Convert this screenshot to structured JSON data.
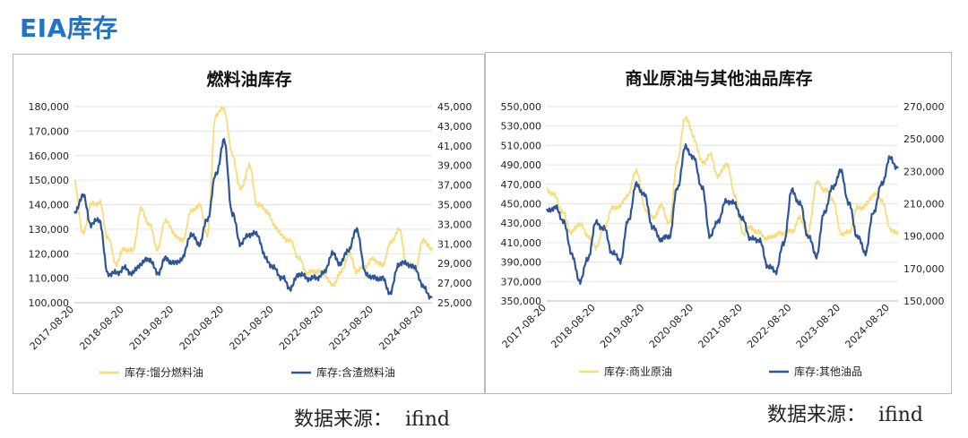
{
  "page": {
    "title": "EIA库存"
  },
  "sources": [
    {
      "label": "数据来源：",
      "value": "ifind"
    },
    {
      "label": "数据来源：",
      "value": "ifind"
    }
  ],
  "colors": {
    "yellow": "#f7dc7b",
    "blue": "#2e5597"
  },
  "chart_data": [
    {
      "type": "line",
      "title": "燃料油库存",
      "x_ticks": [
        "2017-08-20",
        "2018-08-20",
        "2019-08-20",
        "2020-08-20",
        "2021-08-20",
        "2022-08-20",
        "2023-08-20",
        "2024-08-20"
      ],
      "x_range": [
        "2017-08-20",
        "2024-10-20"
      ],
      "y_left": {
        "range": [
          100000,
          180000
        ],
        "ticks": [
          "100,000",
          "110,000",
          "120,000",
          "130,000",
          "140,000",
          "150,000",
          "160,000",
          "170,000",
          "180,000"
        ]
      },
      "y_right": {
        "range": [
          25000,
          45000
        ],
        "ticks": [
          "25,000",
          "27,000",
          "29,000",
          "31,000",
          "33,000",
          "35,000",
          "37,000",
          "39,000",
          "41,000",
          "43,000",
          "45,000"
        ]
      },
      "legend_position": "bottom",
      "series": [
        {
          "name": "库存:馏分燃料油",
          "axis": "left",
          "color": "#f7dc7b",
          "points": [
            [
              "2017-08-20",
              150000
            ],
            [
              "2017-10-20",
              128000
            ],
            [
              "2017-12-20",
              140000
            ],
            [
              "2018-02-20",
              141000
            ],
            [
              "2018-04-20",
              127000
            ],
            [
              "2018-06-20",
              116000
            ],
            [
              "2018-08-20",
              122000
            ],
            [
              "2018-10-20",
              121000
            ],
            [
              "2018-12-20",
              138000
            ],
            [
              "2019-02-20",
              132000
            ],
            [
              "2019-04-20",
              122000
            ],
            [
              "2019-06-20",
              134000
            ],
            [
              "2019-08-20",
              128000
            ],
            [
              "2019-10-20",
              125000
            ],
            [
              "2019-12-20",
              137000
            ],
            [
              "2020-02-20",
              140000
            ],
            [
              "2020-04-20",
              128000
            ],
            [
              "2020-06-20",
              177000
            ],
            [
              "2020-08-20",
              179000
            ],
            [
              "2020-10-20",
              160000
            ],
            [
              "2020-12-20",
              146000
            ],
            [
              "2021-02-20",
              156000
            ],
            [
              "2021-04-20",
              140000
            ],
            [
              "2021-06-20",
              138000
            ],
            [
              "2021-08-20",
              132000
            ],
            [
              "2021-10-20",
              127000
            ],
            [
              "2021-12-20",
              125000
            ],
            [
              "2022-02-20",
              118000
            ],
            [
              "2022-04-20",
              112000
            ],
            [
              "2022-06-20",
              113000
            ],
            [
              "2022-08-20",
              112000
            ],
            [
              "2022-10-20",
              107000
            ],
            [
              "2022-12-20",
              112000
            ],
            [
              "2023-02-20",
              120000
            ],
            [
              "2023-04-20",
              113000
            ],
            [
              "2023-06-20",
              115000
            ],
            [
              "2023-08-20",
              118000
            ],
            [
              "2023-10-20",
              115000
            ],
            [
              "2023-12-20",
              124000
            ],
            [
              "2024-02-20",
              130000
            ],
            [
              "2024-04-20",
              116000
            ],
            [
              "2024-06-20",
              114000
            ],
            [
              "2024-08-20",
              126000
            ],
            [
              "2024-10-20",
              121000
            ]
          ]
        },
        {
          "name": "库存:含渣燃料油",
          "axis": "right",
          "color": "#2e5597",
          "points": [
            [
              "2017-08-20",
              34000
            ],
            [
              "2017-10-20",
              36000
            ],
            [
              "2017-12-20",
              33000
            ],
            [
              "2018-02-20",
              33500
            ],
            [
              "2018-04-20",
              28000
            ],
            [
              "2018-06-20",
              28000
            ],
            [
              "2018-08-20",
              28500
            ],
            [
              "2018-10-20",
              28000
            ],
            [
              "2018-12-20",
              29000
            ],
            [
              "2019-02-20",
              29500
            ],
            [
              "2019-04-20",
              28000
            ],
            [
              "2019-06-20",
              29500
            ],
            [
              "2019-08-20",
              29000
            ],
            [
              "2019-10-20",
              29500
            ],
            [
              "2019-12-20",
              32000
            ],
            [
              "2020-02-20",
              31000
            ],
            [
              "2020-04-20",
              33500
            ],
            [
              "2020-06-20",
              38000
            ],
            [
              "2020-08-20",
              41500
            ],
            [
              "2020-10-20",
              34000
            ],
            [
              "2020-12-20",
              31000
            ],
            [
              "2021-02-20",
              32000
            ],
            [
              "2021-04-20",
              32000
            ],
            [
              "2021-06-20",
              29500
            ],
            [
              "2021-08-20",
              28500
            ],
            [
              "2021-10-20",
              27500
            ],
            [
              "2021-12-20",
              26500
            ],
            [
              "2022-02-20",
              28000
            ],
            [
              "2022-04-20",
              27500
            ],
            [
              "2022-06-20",
              27500
            ],
            [
              "2022-08-20",
              28000
            ],
            [
              "2022-10-20",
              30000
            ],
            [
              "2022-12-20",
              29000
            ],
            [
              "2023-02-20",
              30500
            ],
            [
              "2023-04-20",
              32500
            ],
            [
              "2023-06-20",
              28000
            ],
            [
              "2023-08-20",
              27500
            ],
            [
              "2023-10-20",
              27500
            ],
            [
              "2023-12-20",
              26000
            ],
            [
              "2024-02-20",
              29000
            ],
            [
              "2024-04-20",
              29000
            ],
            [
              "2024-06-20",
              28500
            ],
            [
              "2024-08-20",
              26500
            ],
            [
              "2024-10-20",
              25500
            ]
          ]
        }
      ]
    },
    {
      "type": "line",
      "title": "商业原油与其他油品库存",
      "x_ticks": [
        "2017-08-20",
        "2018-08-20",
        "2019-08-20",
        "2020-08-20",
        "2021-08-20",
        "2022-08-20",
        "2023-08-20",
        "2024-08-20"
      ],
      "x_range": [
        "2017-08-20",
        "2024-10-20"
      ],
      "y_left": {
        "range": [
          350000,
          550000
        ],
        "ticks": [
          "350,000",
          "370,000",
          "390,000",
          "410,000",
          "430,000",
          "450,000",
          "470,000",
          "490,000",
          "510,000",
          "530,000",
          "550,000"
        ]
      },
      "y_right": {
        "range": [
          150000,
          270000
        ],
        "ticks": [
          "150,000",
          "170,000",
          "190,000",
          "210,000",
          "230,000",
          "250,000",
          "270,000"
        ]
      },
      "legend_position": "bottom",
      "series": [
        {
          "name": "库存:商业原油",
          "axis": "left",
          "color": "#f7dc7b",
          "points": [
            [
              "2017-08-20",
              465000
            ],
            [
              "2017-10-20",
              458000
            ],
            [
              "2017-12-20",
              440000
            ],
            [
              "2018-02-20",
              420000
            ],
            [
              "2018-04-20",
              430000
            ],
            [
              "2018-06-20",
              418000
            ],
            [
              "2018-08-20",
              405000
            ],
            [
              "2018-10-20",
              425000
            ],
            [
              "2018-12-20",
              445000
            ],
            [
              "2019-02-20",
              448000
            ],
            [
              "2019-04-20",
              460000
            ],
            [
              "2019-06-20",
              485000
            ],
            [
              "2019-08-20",
              445000
            ],
            [
              "2019-10-20",
              435000
            ],
            [
              "2019-12-20",
              448000
            ],
            [
              "2020-02-20",
              430000
            ],
            [
              "2020-04-20",
              495000
            ],
            [
              "2020-06-20",
              540000
            ],
            [
              "2020-08-20",
              518000
            ],
            [
              "2020-10-20",
              492000
            ],
            [
              "2020-12-20",
              500000
            ],
            [
              "2021-02-20",
              478000
            ],
            [
              "2021-04-20",
              492000
            ],
            [
              "2021-06-20",
              460000
            ],
            [
              "2021-08-20",
              420000
            ],
            [
              "2021-10-20",
              425000
            ],
            [
              "2021-12-20",
              420000
            ],
            [
              "2022-02-20",
              414000
            ],
            [
              "2022-04-20",
              418000
            ],
            [
              "2022-06-20",
              420000
            ],
            [
              "2022-08-20",
              422000
            ],
            [
              "2022-10-20",
              435000
            ],
            [
              "2022-12-20",
              420000
            ],
            [
              "2023-02-20",
              472000
            ],
            [
              "2023-04-20",
              465000
            ],
            [
              "2023-06-20",
              455000
            ],
            [
              "2023-08-20",
              420000
            ],
            [
              "2023-10-20",
              420000
            ],
            [
              "2023-12-20",
              445000
            ],
            [
              "2024-02-20",
              448000
            ],
            [
              "2024-04-20",
              460000
            ],
            [
              "2024-06-20",
              455000
            ],
            [
              "2024-08-20",
              425000
            ],
            [
              "2024-10-20",
              418000
            ]
          ]
        },
        {
          "name": "库存:其他油品",
          "axis": "right",
          "color": "#2e5597",
          "points": [
            [
              "2017-08-20",
              205000
            ],
            [
              "2017-10-20",
              208000
            ],
            [
              "2017-12-20",
              200000
            ],
            [
              "2018-02-20",
              180000
            ],
            [
              "2018-04-20",
              162000
            ],
            [
              "2018-06-20",
              175000
            ],
            [
              "2018-08-20",
              198000
            ],
            [
              "2018-10-20",
              195000
            ],
            [
              "2018-12-20",
              180000
            ],
            [
              "2019-02-20",
              175000
            ],
            [
              "2019-04-20",
              200000
            ],
            [
              "2019-06-20",
              222000
            ],
            [
              "2019-08-20",
              215000
            ],
            [
              "2019-10-20",
              195000
            ],
            [
              "2019-12-20",
              188000
            ],
            [
              "2020-02-20",
              190000
            ],
            [
              "2020-04-20",
              220000
            ],
            [
              "2020-06-20",
              245000
            ],
            [
              "2020-08-20",
              238000
            ],
            [
              "2020-10-20",
              220000
            ],
            [
              "2020-12-20",
              190000
            ],
            [
              "2021-02-20",
              200000
            ],
            [
              "2021-04-20",
              212000
            ],
            [
              "2021-06-20",
              210000
            ],
            [
              "2021-08-20",
              200000
            ],
            [
              "2021-10-20",
              188000
            ],
            [
              "2021-12-20",
              188000
            ],
            [
              "2022-02-20",
              172000
            ],
            [
              "2022-04-20",
              168000
            ],
            [
              "2022-06-20",
              185000
            ],
            [
              "2022-08-20",
              218000
            ],
            [
              "2022-10-20",
              210000
            ],
            [
              "2022-12-20",
              190000
            ],
            [
              "2023-02-20",
              178000
            ],
            [
              "2023-04-20",
              205000
            ],
            [
              "2023-06-20",
              220000
            ],
            [
              "2023-08-20",
              230000
            ],
            [
              "2023-10-20",
              210000
            ],
            [
              "2023-12-20",
              190000
            ],
            [
              "2024-02-20",
              180000
            ],
            [
              "2024-04-20",
              205000
            ],
            [
              "2024-06-20",
              222000
            ],
            [
              "2024-08-20",
              238000
            ],
            [
              "2024-10-20",
              232000
            ]
          ]
        }
      ]
    }
  ]
}
